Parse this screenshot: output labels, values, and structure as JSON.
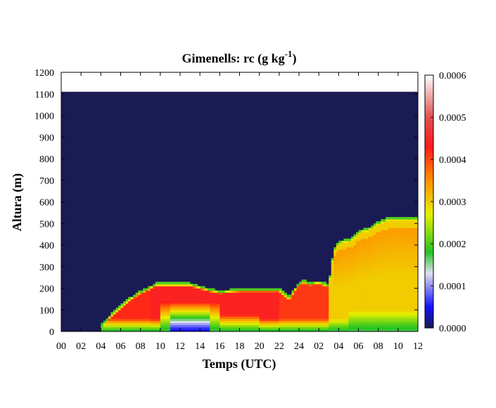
{
  "chart_data": {
    "type": "heatmap",
    "title_main": "Gimenells: rc (g kg",
    "title_exp": "-1",
    "title_close": ")",
    "xlabel": "Temps (UTC)",
    "ylabel": "Altura (m)",
    "x_ticks": [
      "00",
      "02",
      "04",
      "06",
      "08",
      "10",
      "12",
      "14",
      "16",
      "18",
      "20",
      "22",
      "24",
      "02",
      "04",
      "06",
      "08",
      "10",
      "12"
    ],
    "x_range_hours": [
      0,
      36
    ],
    "y_ticks": [
      0,
      100,
      200,
      300,
      400,
      500,
      600,
      700,
      800,
      900,
      1000,
      1100,
      1200
    ],
    "ylim": [
      0,
      1200
    ],
    "data_top_m": 1110,
    "colorbar": {
      "ticks": [
        "0.0000",
        "0.0001",
        "0.0002",
        "0.0003",
        "0.0004",
        "0.0005",
        "0.0006"
      ],
      "range": [
        0,
        0.0006
      ],
      "stops": [
        {
          "v": 0.0,
          "color": "#1a1a55"
        },
        {
          "v": 5e-05,
          "color": "#1010ff"
        },
        {
          "v": 0.00013,
          "color": "#e0e0f0"
        },
        {
          "v": 0.00018,
          "color": "#22c422"
        },
        {
          "v": 0.00027,
          "color": "#e8f000"
        },
        {
          "v": 0.00035,
          "color": "#ff9000"
        },
        {
          "v": 0.00043,
          "color": "#ff1a1a"
        },
        {
          "v": 0.0005,
          "color": "#e05050"
        },
        {
          "v": 0.0006,
          "color": "#ffffff"
        }
      ]
    },
    "background_value": 0.0,
    "cloud_top_profile": {
      "hours_since_start": [
        4,
        5,
        6,
        7,
        8,
        9,
        9.5,
        13,
        15,
        16,
        18,
        21,
        22,
        23,
        24,
        24.5,
        25,
        26,
        27,
        27.5,
        28,
        29,
        29.5,
        30,
        31,
        32,
        33,
        36
      ],
      "height_m": [
        30,
        80,
        120,
        160,
        190,
        210,
        225,
        225,
        200,
        190,
        200,
        200,
        200,
        160,
        230,
        240,
        230,
        235,
        220,
        380,
        420,
        430,
        440,
        470,
        480,
        510,
        530,
        530
      ]
    }
  }
}
